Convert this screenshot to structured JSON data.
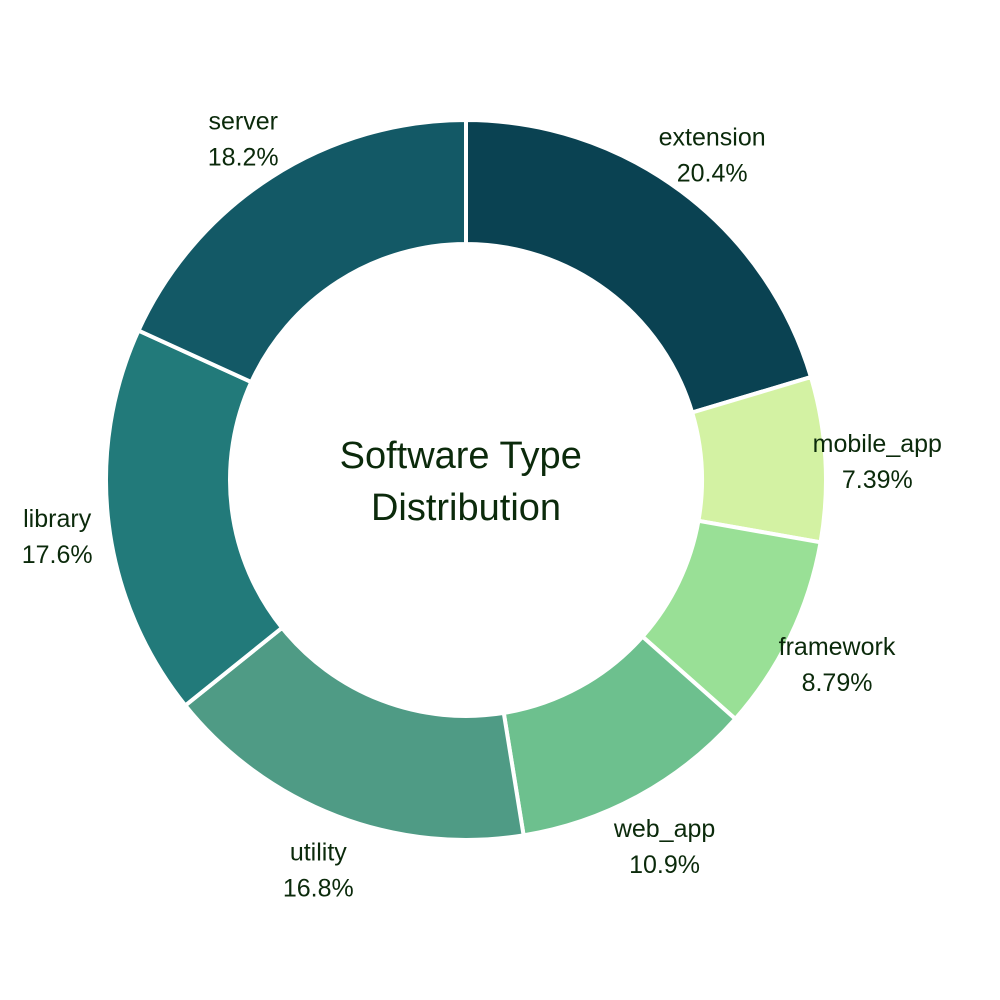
{
  "chart_data": {
    "type": "pie",
    "variant": "donut",
    "title": "Software Type Distribution",
    "title_lines": [
      "Software Type",
      "Distribution"
    ],
    "start": "12 o'clock",
    "direction": "clockwise",
    "slices": [
      {
        "label": "extension",
        "value": 20.4,
        "display": "20.4%",
        "color": "#0a4252"
      },
      {
        "label": "mobile_app",
        "value": 7.39,
        "display": "7.39%",
        "color": "#d3f2a3"
      },
      {
        "label": "framework",
        "value": 8.79,
        "display": "8.79%",
        "color": "#99e096"
      },
      {
        "label": "web_app",
        "value": 10.9,
        "display": "10.9%",
        "color": "#6dc08e"
      },
      {
        "label": "utility",
        "value": 16.8,
        "display": "16.8%",
        "color": "#4f9b85"
      },
      {
        "label": "library",
        "value": 17.6,
        "display": "17.6%",
        "color": "#227a7a"
      },
      {
        "label": "server",
        "value": 18.2,
        "display": "18.2%",
        "color": "#135966"
      }
    ]
  }
}
